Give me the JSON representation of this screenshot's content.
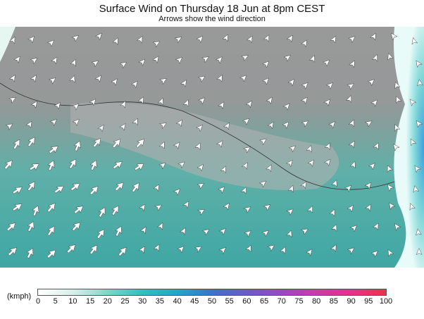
{
  "header": {
    "title": "Surface Wind on Thursday 18 Jun at 8pm CEST",
    "subtitle": "Arrows show the wind direction"
  },
  "legend": {
    "unit": "(kmph)",
    "ticks": [
      0,
      5,
      10,
      15,
      20,
      25,
      30,
      35,
      40,
      45,
      50,
      55,
      60,
      65,
      70,
      75,
      80,
      85,
      90,
      95,
      100
    ]
  }
}
